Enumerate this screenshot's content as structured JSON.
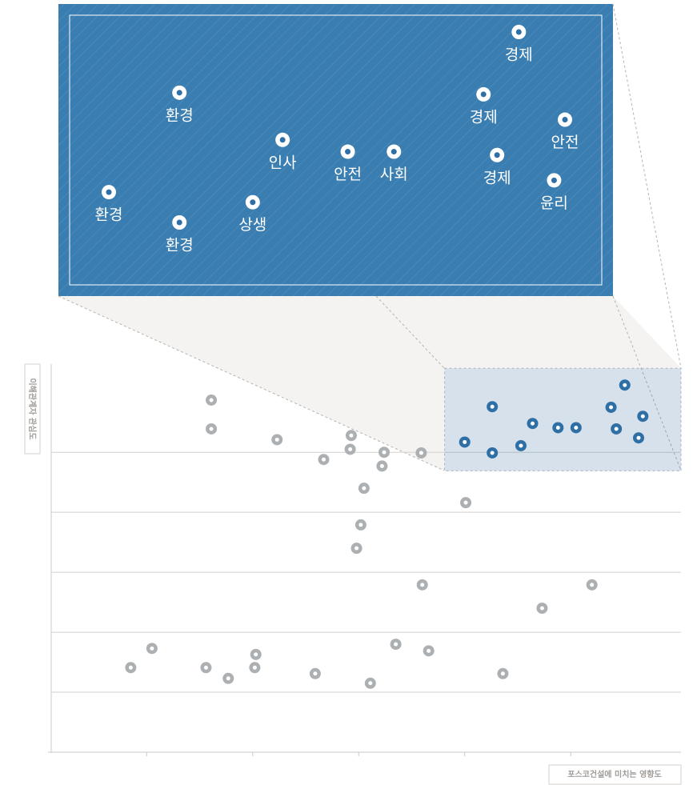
{
  "chart_data": {
    "type": "scatter",
    "x_label": "포스코건설에 미치는 영향도",
    "y_label": "이해관계자 관심도",
    "xlim": [
      0.1,
      6.04
    ],
    "ylim": [
      0,
      6.47
    ],
    "xticks": [
      1,
      2,
      3,
      4,
      5
    ],
    "yticks": [
      1,
      2,
      3,
      4,
      5
    ],
    "grid": true,
    "zoom": {
      "xlim": [
        3.81,
        6.04
      ],
      "ylim": [
        4.69,
        6.4
      ]
    },
    "series": [
      {
        "color": "#adb0b2",
        "x": [
          1.61,
          1.61,
          2.23,
          2.93,
          2.67,
          2.92,
          3.24,
          3.59,
          3.22,
          3.05,
          4.01,
          3.02,
          2.98,
          3.6,
          5.2,
          4.73,
          1.05,
          0.85,
          1.56,
          1.77,
          2.03,
          2.02,
          2.59,
          3.35,
          3.66,
          3.11,
          4.36
        ],
        "values": [
          5.87,
          5.39,
          5.21,
          5.28,
          4.88,
          5.05,
          5.0,
          4.99,
          4.77,
          4.4,
          4.16,
          3.79,
          3.4,
          2.79,
          2.79,
          2.4,
          1.73,
          1.41,
          1.41,
          1.23,
          1.63,
          1.41,
          1.31,
          1.8,
          1.69,
          1.15,
          1.31
        ]
      },
      {
        "color": "#2e6fa6",
        "labels": [
          "환경",
          "환경",
          "환경",
          "상생",
          "인사",
          "안전",
          "사회",
          "경제",
          "경제",
          "경제",
          "윤리",
          "안전"
        ],
        "x": [
          4.0,
          4.26,
          4.26,
          4.53,
          4.64,
          4.88,
          5.05,
          5.38,
          5.43,
          5.51,
          5.64,
          5.68
        ],
        "values": [
          5.17,
          5.76,
          4.99,
          5.11,
          5.48,
          5.41,
          5.41,
          5.75,
          5.39,
          6.12,
          5.24,
          5.6
        ]
      }
    ]
  }
}
